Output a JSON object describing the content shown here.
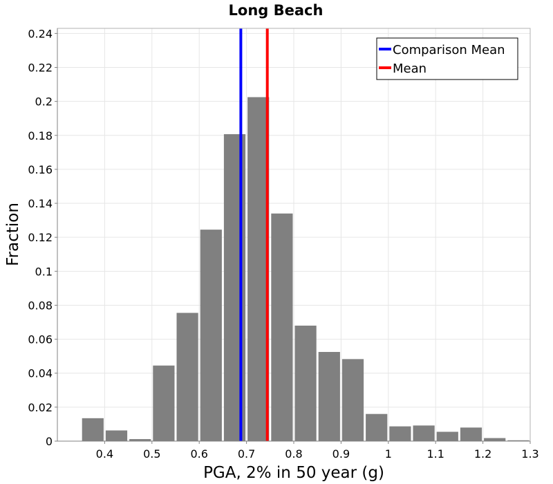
{
  "chart_data": {
    "type": "bar",
    "title": "Long Beach",
    "xlabel": "PGA, 2% in 50 year (g)",
    "ylabel": "Fraction",
    "xlim": [
      0.3,
      1.3
    ],
    "ylim": [
      0,
      0.243
    ],
    "bin_width": 0.05,
    "x_ticks": [
      0.4,
      0.5,
      0.6,
      0.7,
      0.8,
      0.9,
      1.0,
      1.1,
      1.2,
      1.3
    ],
    "x_tick_labels": [
      "0.4",
      "0.5",
      "0.6",
      "0.7",
      "0.8",
      "0.9",
      "1",
      "1.1",
      "1.2",
      "1.3"
    ],
    "y_ticks": [
      0,
      0.02,
      0.04,
      0.06,
      0.08,
      0.1,
      0.12,
      0.14,
      0.16,
      0.18,
      0.2,
      0.22,
      0.24
    ],
    "y_tick_labels": [
      "0",
      "0.02",
      "0.04",
      "0.06",
      "0.08",
      "0.1",
      "0.12",
      "0.14",
      "0.16",
      "0.18",
      "0.2",
      "0.22",
      "0.24"
    ],
    "grid": true,
    "bar_color": "#808080",
    "bins": [
      {
        "x": 0.375,
        "value": 0.0135
      },
      {
        "x": 0.425,
        "value": 0.0063
      },
      {
        "x": 0.475,
        "value": 0.0012
      },
      {
        "x": 0.525,
        "value": 0.0445
      },
      {
        "x": 0.575,
        "value": 0.0755
      },
      {
        "x": 0.625,
        "value": 0.1245
      },
      {
        "x": 0.675,
        "value": 0.1807
      },
      {
        "x": 0.725,
        "value": 0.2025
      },
      {
        "x": 0.775,
        "value": 0.134
      },
      {
        "x": 0.825,
        "value": 0.068
      },
      {
        "x": 0.875,
        "value": 0.0525
      },
      {
        "x": 0.925,
        "value": 0.0483
      },
      {
        "x": 0.975,
        "value": 0.016
      },
      {
        "x": 1.025,
        "value": 0.0087
      },
      {
        "x": 1.075,
        "value": 0.0092
      },
      {
        "x": 1.125,
        "value": 0.0055
      },
      {
        "x": 1.175,
        "value": 0.008
      },
      {
        "x": 1.225,
        "value": 0.0018
      },
      {
        "x": 1.275,
        "value": 0.0005
      }
    ],
    "vertical_lines": [
      {
        "name": "Comparison Mean",
        "x": 0.688,
        "color": "#0000ff"
      },
      {
        "name": "Mean",
        "x": 0.744,
        "color": "#ff0000"
      }
    ],
    "legend_position": "top-right"
  }
}
